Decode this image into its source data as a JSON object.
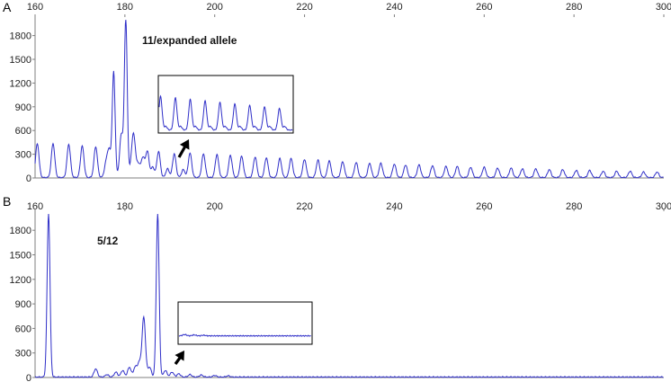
{
  "figure": {
    "colors": {
      "trace": "#2f2fc8",
      "axis": "#7f7f7f",
      "frame": "#000000",
      "arrow": "#000000"
    }
  },
  "chart_data": [
    {
      "type": "line",
      "panel_label": "A",
      "annotation": "11/expanded allele",
      "x_ticks": [
        160,
        180,
        200,
        220,
        240,
        260,
        280,
        300
      ],
      "y_ticks": [
        0,
        300,
        600,
        900,
        1200,
        1500,
        1800
      ],
      "xlim": [
        160,
        300
      ],
      "ylim": [
        0,
        2000
      ],
      "grid": false,
      "peaks": [
        {
          "x": 160.5,
          "y": 430
        },
        {
          "x": 164.0,
          "y": 430
        },
        {
          "x": 167.5,
          "y": 420
        },
        {
          "x": 170.5,
          "y": 400
        },
        {
          "x": 173.5,
          "y": 390
        },
        {
          "x": 175.8,
          "y": 170
        },
        {
          "x": 176.5,
          "y": 330
        },
        {
          "x": 177.5,
          "y": 1330
        },
        {
          "x": 179.2,
          "y": 540
        },
        {
          "x": 180.2,
          "y": 2000
        },
        {
          "x": 181.5,
          "y": 180
        },
        {
          "x": 182.0,
          "y": 470
        },
        {
          "x": 183.0,
          "y": 170
        },
        {
          "x": 184.0,
          "y": 250
        },
        {
          "x": 185.0,
          "y": 330
        },
        {
          "x": 186.2,
          "y": 130
        },
        {
          "x": 187.5,
          "y": 330
        },
        {
          "x": 189.5,
          "y": 110
        },
        {
          "x": 191.0,
          "y": 300
        },
        {
          "x": 193.0,
          "y": 100
        },
        {
          "x": 194.5,
          "y": 310
        },
        {
          "x": 197.5,
          "y": 300
        },
        {
          "x": 200.5,
          "y": 290
        },
        {
          "x": 203.5,
          "y": 280
        },
        {
          "x": 206.0,
          "y": 270
        },
        {
          "x": 209.0,
          "y": 260
        },
        {
          "x": 211.5,
          "y": 250
        },
        {
          "x": 214.5,
          "y": 240
        },
        {
          "x": 217.0,
          "y": 240
        },
        {
          "x": 220.0,
          "y": 230
        },
        {
          "x": 223.0,
          "y": 220
        },
        {
          "x": 225.5,
          "y": 210
        },
        {
          "x": 228.5,
          "y": 200
        },
        {
          "x": 231.5,
          "y": 190
        },
        {
          "x": 234.5,
          "y": 180
        },
        {
          "x": 237.0,
          "y": 180
        },
        {
          "x": 240.0,
          "y": 170
        },
        {
          "x": 242.5,
          "y": 160
        },
        {
          "x": 245.5,
          "y": 160
        },
        {
          "x": 248.5,
          "y": 150
        },
        {
          "x": 251.5,
          "y": 140
        },
        {
          "x": 254.0,
          "y": 140
        },
        {
          "x": 257.0,
          "y": 130
        },
        {
          "x": 260.0,
          "y": 130
        },
        {
          "x": 263.0,
          "y": 120
        },
        {
          "x": 266.0,
          "y": 120
        },
        {
          "x": 268.5,
          "y": 110
        },
        {
          "x": 271.5,
          "y": 110
        },
        {
          "x": 274.5,
          "y": 100
        },
        {
          "x": 277.5,
          "y": 100
        },
        {
          "x": 280.5,
          "y": 90
        },
        {
          "x": 283.5,
          "y": 90
        },
        {
          "x": 286.5,
          "y": 80
        },
        {
          "x": 289.5,
          "y": 80
        },
        {
          "x": 292.5,
          "y": 80
        },
        {
          "x": 295.5,
          "y": 70
        },
        {
          "x": 298.5,
          "y": 70
        }
      ]
    },
    {
      "type": "line",
      "panel_label": "B",
      "annotation": "5/12",
      "x_ticks": [
        160,
        180,
        200,
        220,
        240,
        260,
        280,
        300
      ],
      "y_ticks": [
        0,
        300,
        600,
        900,
        1200,
        1500,
        1800
      ],
      "xlim": [
        160,
        300
      ],
      "ylim": [
        0,
        2000
      ],
      "grid": false,
      "peaks": [
        {
          "x": 163.0,
          "y": 2000
        },
        {
          "x": 173.5,
          "y": 100
        },
        {
          "x": 176.0,
          "y": 30
        },
        {
          "x": 178.0,
          "y": 60
        },
        {
          "x": 179.5,
          "y": 80
        },
        {
          "x": 181.0,
          "y": 120
        },
        {
          "x": 182.3,
          "y": 120
        },
        {
          "x": 183.2,
          "y": 170
        },
        {
          "x": 184.2,
          "y": 730
        },
        {
          "x": 185.5,
          "y": 120
        },
        {
          "x": 187.3,
          "y": 2000
        },
        {
          "x": 189.0,
          "y": 80
        },
        {
          "x": 190.5,
          "y": 60
        },
        {
          "x": 192.0,
          "y": 40
        },
        {
          "x": 194.5,
          "y": 30
        },
        {
          "x": 197.0,
          "y": 25
        },
        {
          "x": 200.0,
          "y": 20
        },
        {
          "x": 203.0,
          "y": 15
        }
      ]
    }
  ]
}
